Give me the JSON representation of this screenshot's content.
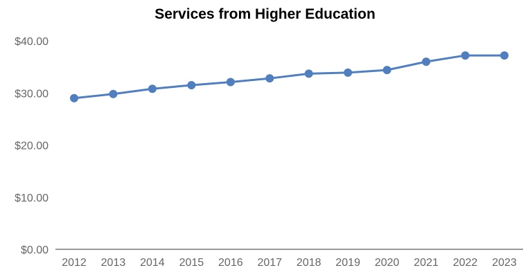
{
  "chart_data": {
    "type": "line",
    "title": "Services from Higher Education",
    "xlabel": "",
    "ylabel": "",
    "categories": [
      "2012",
      "2013",
      "2014",
      "2015",
      "2016",
      "2017",
      "2018",
      "2019",
      "2020",
      "2021",
      "2022",
      "2023"
    ],
    "series": [
      {
        "values": [
          29.0,
          29.8,
          30.8,
          31.5,
          32.1,
          32.8,
          33.7,
          33.9,
          34.4,
          36.0,
          37.2,
          37.2
        ],
        "color": "#4f7fc0"
      }
    ],
    "ylim": [
      0,
      40
    ],
    "yticks": [
      "$0.00",
      "$10.00",
      "$20.00",
      "$30.00",
      "$40.00"
    ],
    "grid": false,
    "legend": "none"
  }
}
